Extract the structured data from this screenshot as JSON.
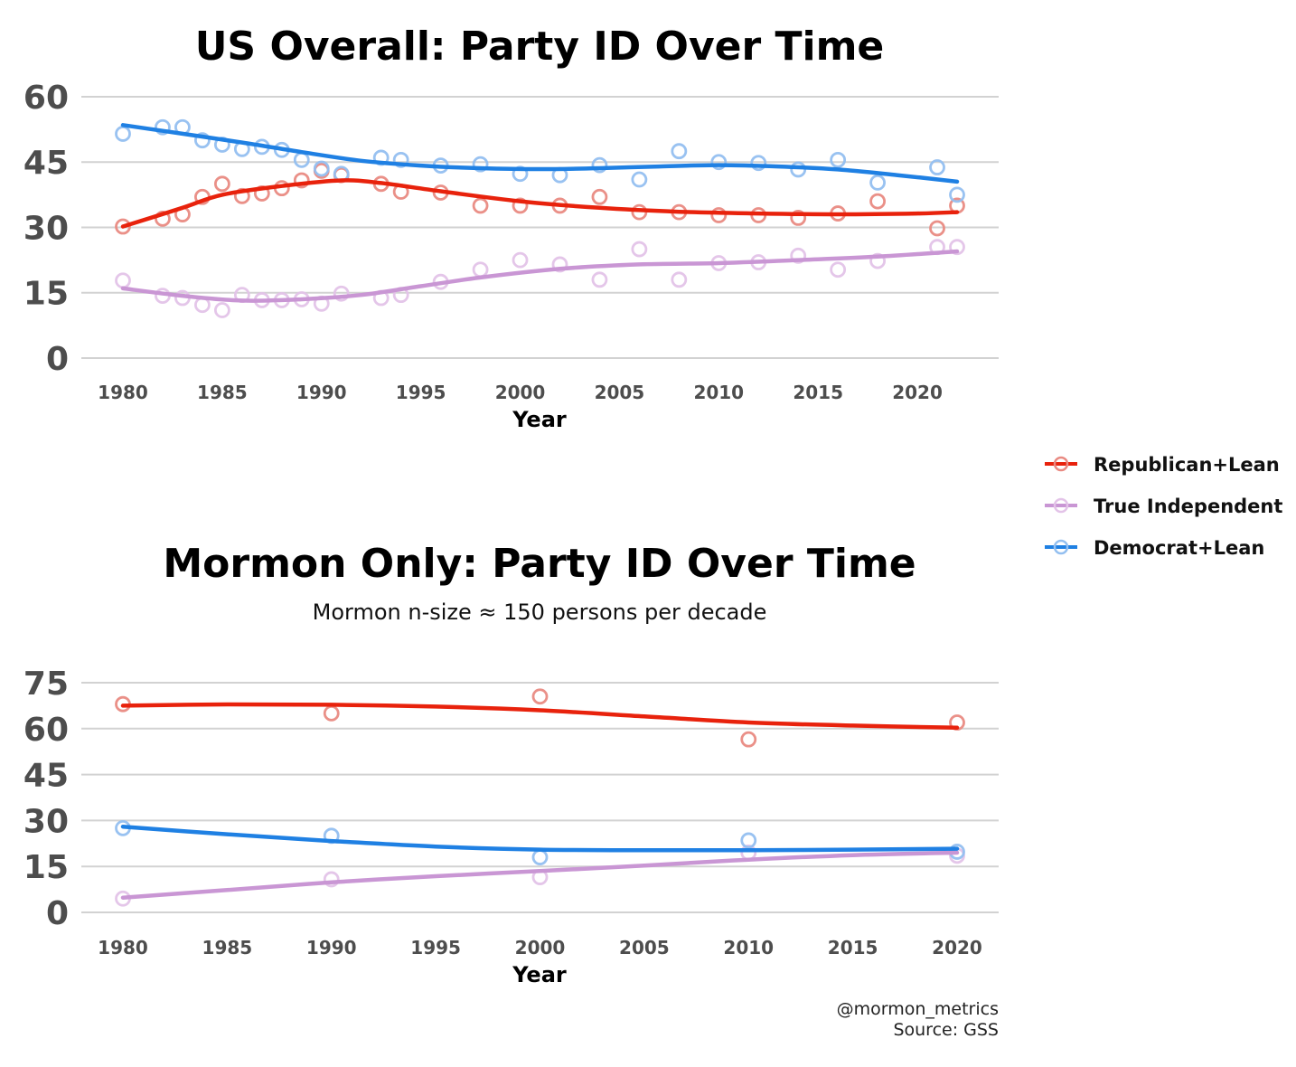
{
  "colors": {
    "republican": "#e8220c",
    "independent": "#c996d4",
    "democrat": "#1f80e3",
    "grid": "#d2d2d2"
  },
  "legend": {
    "items": [
      {
        "key": "republican",
        "label": "Republican+Lean"
      },
      {
        "key": "independent",
        "label": "True Independent"
      },
      {
        "key": "democrat",
        "label": "Democrat+Lean"
      }
    ]
  },
  "caption": {
    "line1": "@mormon_metrics",
    "line2": "Source: GSS"
  },
  "chart_data": [
    {
      "type": "scatter",
      "title": "US Overall: Party ID Over Time",
      "subtitle": "",
      "xlabel": "Year",
      "ylabel": "",
      "xlim": [
        1980,
        2022
      ],
      "ylim": [
        0,
        60
      ],
      "xticks": [
        1980,
        1985,
        1990,
        1995,
        2000,
        2005,
        2010,
        2015,
        2020
      ],
      "yticks": [
        0,
        15,
        30,
        45,
        60
      ],
      "series": [
        {
          "name": "Republican+Lean",
          "key": "republican",
          "points": [
            [
              1980,
              30.2
            ],
            [
              1982,
              32
            ],
            [
              1983,
              33
            ],
            [
              1984,
              37
            ],
            [
              1985,
              40
            ],
            [
              1986,
              37.2
            ],
            [
              1987,
              37.8
            ],
            [
              1988,
              39
            ],
            [
              1989,
              40.8
            ],
            [
              1990,
              43
            ],
            [
              1991,
              42
            ],
            [
              1993,
              40
            ],
            [
              1994,
              38.2
            ],
            [
              1996,
              38
            ],
            [
              1998,
              35
            ],
            [
              2000,
              35
            ],
            [
              2002,
              35
            ],
            [
              2004,
              37
            ],
            [
              2006,
              33.5
            ],
            [
              2008,
              33.5
            ],
            [
              2010,
              32.8
            ],
            [
              2012,
              32.8
            ],
            [
              2014,
              32.2
            ],
            [
              2016,
              33.2
            ],
            [
              2018,
              36
            ],
            [
              2021,
              29.8
            ],
            [
              2022,
              35
            ]
          ],
          "trend": [
            [
              1980,
              30.2
            ],
            [
              1983,
              34.5
            ],
            [
              1985,
              37.5
            ],
            [
              1988,
              39.5
            ],
            [
              1991,
              40.8
            ],
            [
              1993,
              40.2
            ],
            [
              1996,
              38.3
            ],
            [
              2000,
              36
            ],
            [
              2004,
              34.5
            ],
            [
              2008,
              33.6
            ],
            [
              2012,
              33.2
            ],
            [
              2016,
              33
            ],
            [
              2020,
              33.2
            ],
            [
              2022,
              33.5
            ]
          ]
        },
        {
          "name": "True Independent",
          "key": "independent",
          "points": [
            [
              1980,
              17.8
            ],
            [
              1982,
              14.3
            ],
            [
              1983,
              13.8
            ],
            [
              1984,
              12.2
            ],
            [
              1985,
              11
            ],
            [
              1986,
              14.5
            ],
            [
              1987,
              13.3
            ],
            [
              1988,
              13.3
            ],
            [
              1989,
              13.5
            ],
            [
              1990,
              12.5
            ],
            [
              1991,
              14.8
            ],
            [
              1993,
              13.8
            ],
            [
              1994,
              14.5
            ],
            [
              1996,
              17.5
            ],
            [
              1998,
              20.3
            ],
            [
              2000,
              22.5
            ],
            [
              2002,
              21.5
            ],
            [
              2004,
              18
            ],
            [
              2006,
              25
            ],
            [
              2008,
              18
            ],
            [
              2010,
              21.8
            ],
            [
              2012,
              22
            ],
            [
              2014,
              23.5
            ],
            [
              2016,
              20.3
            ],
            [
              2018,
              22.3
            ],
            [
              2021,
              25.5
            ],
            [
              2022,
              25.5
            ]
          ],
          "trend": [
            [
              1980,
              16
            ],
            [
              1983,
              14.3
            ],
            [
              1986,
              13.2
            ],
            [
              1989,
              13.5
            ],
            [
              1992,
              14.5
            ],
            [
              1995,
              16.5
            ],
            [
              1998,
              18.5
            ],
            [
              2002,
              20.5
            ],
            [
              2006,
              21.5
            ],
            [
              2010,
              21.8
            ],
            [
              2014,
              22.5
            ],
            [
              2018,
              23.3
            ],
            [
              2022,
              24.5
            ]
          ]
        },
        {
          "name": "Democrat+Lean",
          "key": "democrat",
          "points": [
            [
              1980,
              51.5
            ],
            [
              1982,
              53
            ],
            [
              1983,
              53
            ],
            [
              1984,
              50
            ],
            [
              1985,
              49
            ],
            [
              1986,
              48
            ],
            [
              1987,
              48.5
            ],
            [
              1988,
              47.8
            ],
            [
              1989,
              45.5
            ],
            [
              1990,
              43.5
            ],
            [
              1991,
              42.3
            ],
            [
              1993,
              46
            ],
            [
              1994,
              45.5
            ],
            [
              1996,
              44.2
            ],
            [
              1998,
              44.5
            ],
            [
              2000,
              42.3
            ],
            [
              2002,
              42
            ],
            [
              2004,
              44.3
            ],
            [
              2006,
              41
            ],
            [
              2008,
              47.5
            ],
            [
              2010,
              45
            ],
            [
              2012,
              44.8
            ],
            [
              2014,
              43.3
            ],
            [
              2016,
              45.5
            ],
            [
              2018,
              40.3
            ],
            [
              2021,
              43.8
            ],
            [
              2022,
              37.5
            ]
          ],
          "trend": [
            [
              1980,
              53.5
            ],
            [
              1983,
              51.5
            ],
            [
              1986,
              49.5
            ],
            [
              1989,
              47.3
            ],
            [
              1992,
              45.3
            ],
            [
              1995,
              44.2
            ],
            [
              1998,
              43.6
            ],
            [
              2001,
              43.4
            ],
            [
              2004,
              43.6
            ],
            [
              2007,
              44
            ],
            [
              2010,
              44.3
            ],
            [
              2013,
              44
            ],
            [
              2016,
              43.3
            ],
            [
              2019,
              42
            ],
            [
              2022,
              40.5
            ]
          ]
        }
      ]
    },
    {
      "type": "scatter",
      "title": "Mormon Only: Party ID Over Time",
      "subtitle": "Mormon n-size ≈ 150 persons per decade",
      "xlabel": "Year",
      "ylabel": "",
      "xlim": [
        1980,
        2020
      ],
      "ylim": [
        0,
        75
      ],
      "xticks": [
        1980,
        1985,
        1990,
        1995,
        2000,
        2005,
        2010,
        2015,
        2020
      ],
      "yticks": [
        0,
        15,
        30,
        45,
        60,
        75
      ],
      "series": [
        {
          "name": "Republican+Lean",
          "key": "republican",
          "points": [
            [
              1980,
              68
            ],
            [
              1990,
              65
            ],
            [
              2000,
              70.5
            ],
            [
              2010,
              56.5
            ],
            [
              2020,
              62
            ]
          ],
          "trend": [
            [
              1980,
              67.5
            ],
            [
              1985,
              67.9
            ],
            [
              1990,
              67.8
            ],
            [
              1995,
              67.2
            ],
            [
              2000,
              66
            ],
            [
              2005,
              64
            ],
            [
              2010,
              62
            ],
            [
              2015,
              61
            ],
            [
              2020,
              60.3
            ]
          ]
        },
        {
          "name": "True Independent",
          "key": "independent",
          "points": [
            [
              1980,
              4.5
            ],
            [
              1990,
              10.8
            ],
            [
              2000,
              11.5
            ],
            [
              2010,
              19.5
            ],
            [
              2020,
              18.5
            ]
          ],
          "trend": [
            [
              1980,
              4.8
            ],
            [
              1985,
              7.3
            ],
            [
              1990,
              9.8
            ],
            [
              1995,
              11.8
            ],
            [
              2000,
              13.5
            ],
            [
              2005,
              15.3
            ],
            [
              2010,
              17.2
            ],
            [
              2015,
              18.7
            ],
            [
              2020,
              19.5
            ]
          ]
        },
        {
          "name": "Democrat+Lean",
          "key": "democrat",
          "points": [
            [
              1980,
              27.5
            ],
            [
              1990,
              25
            ],
            [
              2000,
              18
            ],
            [
              2010,
              23.5
            ],
            [
              2020,
              19.8
            ]
          ],
          "trend": [
            [
              1980,
              28
            ],
            [
              1985,
              25.5
            ],
            [
              1990,
              23.3
            ],
            [
              1995,
              21.5
            ],
            [
              2000,
              20.5
            ],
            [
              2005,
              20.3
            ],
            [
              2010,
              20.3
            ],
            [
              2015,
              20.5
            ],
            [
              2020,
              20.8
            ]
          ]
        }
      ]
    }
  ]
}
